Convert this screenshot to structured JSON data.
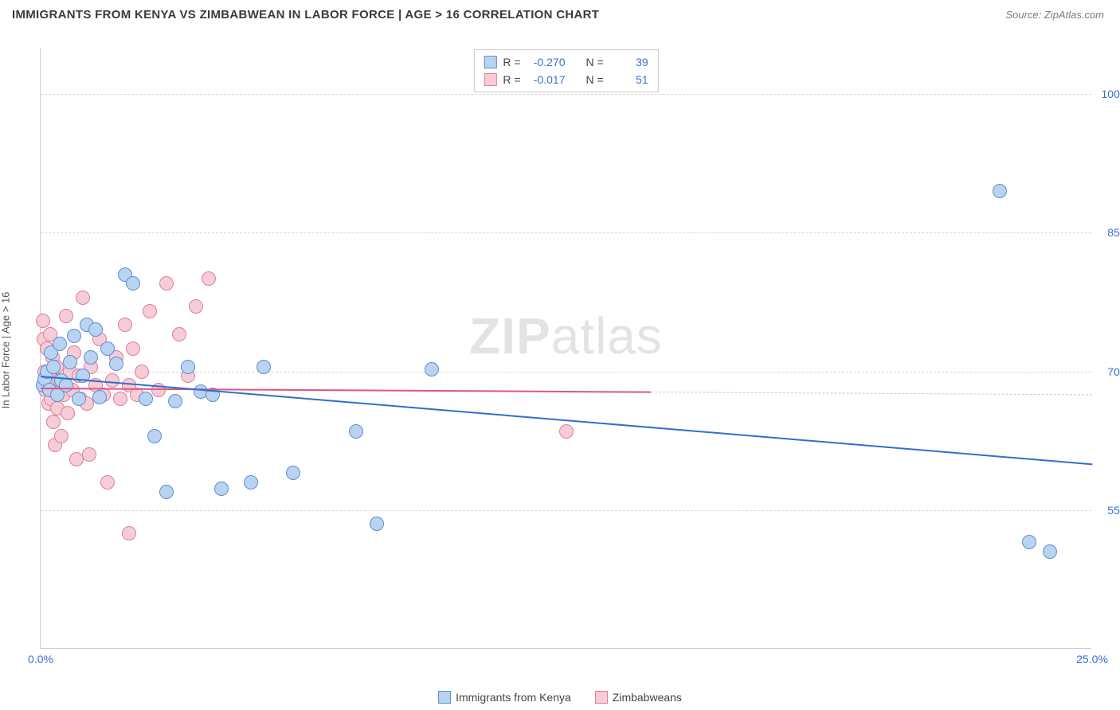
{
  "title": "IMMIGRANTS FROM KENYA VS ZIMBABWEAN IN LABOR FORCE | AGE > 16 CORRELATION CHART",
  "source": "Source: ZipAtlas.com",
  "watermark_a": "ZIP",
  "watermark_b": "atlas",
  "chart": {
    "type": "scatter",
    "ylabel": "In Labor Force | Age > 16",
    "xlim": [
      0,
      25
    ],
    "ylim": [
      40,
      105
    ],
    "xticks": [
      {
        "v": 0,
        "label": "0.0%"
      },
      {
        "v": 25,
        "label": "25.0%"
      }
    ],
    "yticks": [
      {
        "v": 55,
        "label": "55.0%"
      },
      {
        "v": 70,
        "label": "70.0%"
      },
      {
        "v": 85,
        "label": "85.0%"
      },
      {
        "v": 100,
        "label": "100.0%"
      }
    ],
    "grid_color": "#d8d8d8",
    "background_color": "#ffffff",
    "series": [
      {
        "name": "Immigrants from Kenya",
        "fill": "#b9d3f0",
        "stroke": "#5a8fd6",
        "marker_radius": 9,
        "R": "-0.270",
        "N": "39",
        "trend": {
          "x0": 0,
          "y0": 69.5,
          "x1": 25,
          "y1": 60.0,
          "color": "#2f6fd0"
        },
        "points": [
          [
            0.05,
            68.5
          ],
          [
            0.1,
            69.2
          ],
          [
            0.15,
            70.0
          ],
          [
            0.2,
            68.0
          ],
          [
            0.25,
            72.0
          ],
          [
            0.3,
            70.5
          ],
          [
            0.4,
            67.5
          ],
          [
            0.45,
            73.0
          ],
          [
            0.5,
            69.0
          ],
          [
            0.6,
            68.5
          ],
          [
            0.7,
            71.0
          ],
          [
            0.8,
            73.8
          ],
          [
            0.9,
            67.0
          ],
          [
            1.0,
            69.5
          ],
          [
            1.1,
            75.0
          ],
          [
            1.2,
            71.5
          ],
          [
            1.3,
            74.5
          ],
          [
            1.4,
            67.2
          ],
          [
            1.6,
            72.5
          ],
          [
            1.8,
            70.8
          ],
          [
            2.0,
            80.5
          ],
          [
            2.2,
            79.5
          ],
          [
            2.5,
            67.0
          ],
          [
            2.7,
            63.0
          ],
          [
            3.0,
            57.0
          ],
          [
            3.2,
            66.8
          ],
          [
            3.5,
            70.5
          ],
          [
            3.8,
            67.8
          ],
          [
            4.1,
            67.5
          ],
          [
            4.3,
            57.3
          ],
          [
            5.0,
            58.0
          ],
          [
            5.3,
            70.5
          ],
          [
            6.0,
            59.0
          ],
          [
            7.5,
            63.5
          ],
          [
            8.0,
            53.5
          ],
          [
            9.3,
            70.2
          ],
          [
            22.8,
            89.5
          ],
          [
            23.5,
            51.5
          ],
          [
            24.0,
            50.5
          ]
        ]
      },
      {
        "name": "Zimbabweans",
        "fill": "#f5cdd7",
        "stroke": "#e47a98",
        "marker_radius": 9,
        "R": "-0.017",
        "N": "51",
        "trend": {
          "x0": 0,
          "y0": 68.2,
          "x1": 14.5,
          "y1": 67.8,
          "color": "#e0557e"
        },
        "trend_dashed": {
          "x0": 14.5,
          "y0": 67.8,
          "x1": 25,
          "y1": 67.5,
          "color": "#f0b8c5"
        },
        "points": [
          [
            0.05,
            75.5
          ],
          [
            0.08,
            73.5
          ],
          [
            0.1,
            70.0
          ],
          [
            0.12,
            68.0
          ],
          [
            0.15,
            72.5
          ],
          [
            0.18,
            66.5
          ],
          [
            0.2,
            69.5
          ],
          [
            0.22,
            74.0
          ],
          [
            0.25,
            67.0
          ],
          [
            0.28,
            71.5
          ],
          [
            0.3,
            64.5
          ],
          [
            0.33,
            68.5
          ],
          [
            0.35,
            62.0
          ],
          [
            0.38,
            70.5
          ],
          [
            0.4,
            66.0
          ],
          [
            0.45,
            69.0
          ],
          [
            0.5,
            63.0
          ],
          [
            0.55,
            67.5
          ],
          [
            0.6,
            76.0
          ],
          [
            0.65,
            65.5
          ],
          [
            0.7,
            70.0
          ],
          [
            0.75,
            68.0
          ],
          [
            0.8,
            72.0
          ],
          [
            0.85,
            60.5
          ],
          [
            0.9,
            69.5
          ],
          [
            0.95,
            67.0
          ],
          [
            1.0,
            78.0
          ],
          [
            1.1,
            66.5
          ],
          [
            1.15,
            61.0
          ],
          [
            1.2,
            70.5
          ],
          [
            1.3,
            68.5
          ],
          [
            1.4,
            73.5
          ],
          [
            1.5,
            67.5
          ],
          [
            1.6,
            58.0
          ],
          [
            1.7,
            69.0
          ],
          [
            1.8,
            71.5
          ],
          [
            1.9,
            67.0
          ],
          [
            2.0,
            75.0
          ],
          [
            2.1,
            68.5
          ],
          [
            2.2,
            72.5
          ],
          [
            2.3,
            67.5
          ],
          [
            2.4,
            70.0
          ],
          [
            2.6,
            76.5
          ],
          [
            2.8,
            68.0
          ],
          [
            3.0,
            79.5
          ],
          [
            3.3,
            74.0
          ],
          [
            3.5,
            69.5
          ],
          [
            3.7,
            77.0
          ],
          [
            4.0,
            80.0
          ],
          [
            2.1,
            52.5
          ],
          [
            12.5,
            63.5
          ]
        ]
      }
    ]
  },
  "legend": {
    "series1_label": "Immigrants from Kenya",
    "series2_label": "Zimbabweans"
  },
  "stat_labels": {
    "R": "R =",
    "N": "N ="
  }
}
